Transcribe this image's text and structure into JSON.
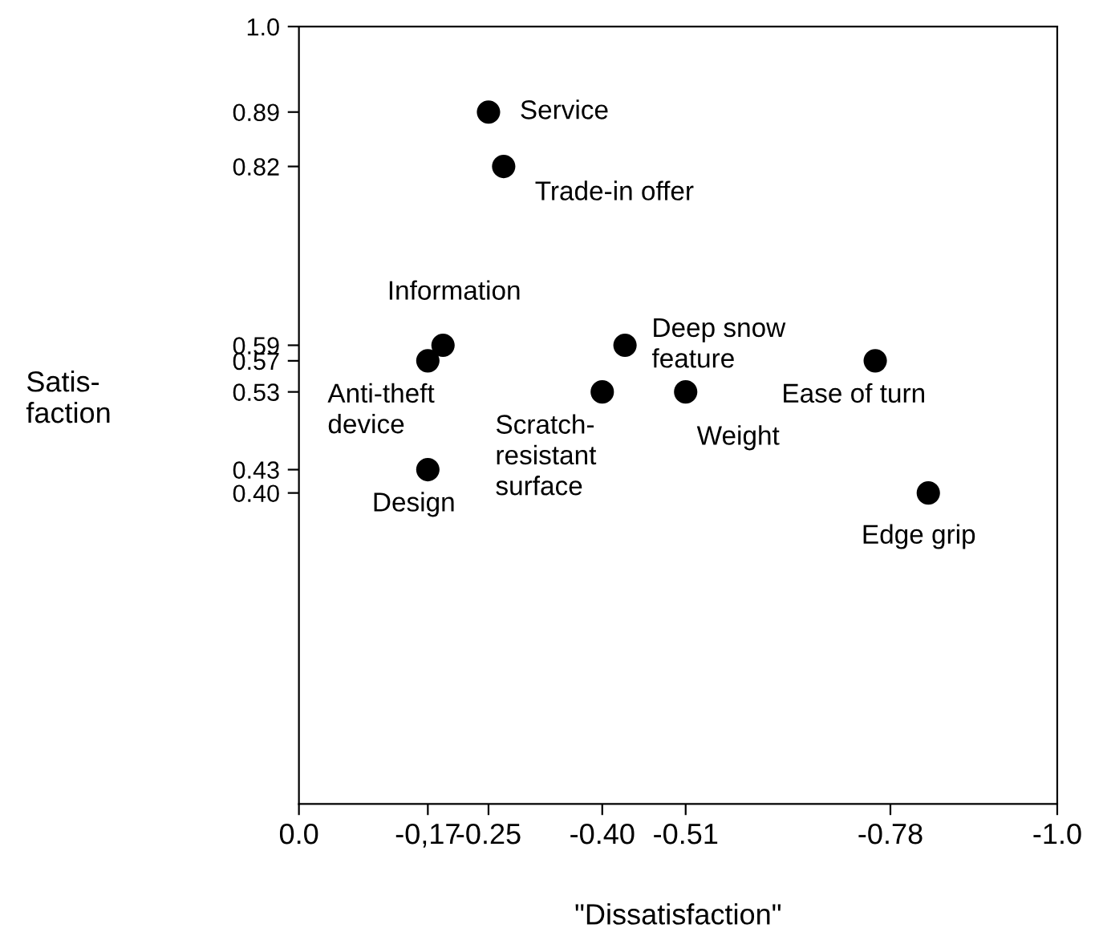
{
  "chart_data": {
    "type": "scatter",
    "xlabel": "\"Dissatisfaction\"",
    "ylabel": "Satis-\nfaction",
    "x": [
      -0.25,
      -0.27,
      -0.19,
      -0.17,
      -0.4,
      -0.43,
      -0.51,
      -0.76,
      -0.17,
      -0.83
    ],
    "values": [
      0.89,
      0.82,
      0.59,
      0.57,
      0.53,
      0.59,
      0.53,
      0.57,
      0.43,
      0.4
    ],
    "color": "#000000",
    "marker": "circle",
    "grid": false,
    "legend": false,
    "xlim": [
      0.0,
      -1.0
    ],
    "ylim": [
      0.0,
      1.0
    ],
    "xticks": [
      {
        "value": 0.0,
        "label": "0.0"
      },
      {
        "value": -0.17,
        "label": "-0,17"
      },
      {
        "value": -0.25,
        "label": "-0.25"
      },
      {
        "value": -0.4,
        "label": "-0.40"
      },
      {
        "value": -0.51,
        "label": "-0.51"
      },
      {
        "value": -0.78,
        "label": "-0.78"
      },
      {
        "value": -1.0,
        "label": "-1.0"
      }
    ],
    "yticks": [
      {
        "value": 0.4,
        "label": "0.40"
      },
      {
        "value": 0.43,
        "label": "0.43"
      },
      {
        "value": 0.53,
        "label": "0.53"
      },
      {
        "value": 0.57,
        "label": "0.57"
      },
      {
        "value": 0.59,
        "label": "0.59"
      },
      {
        "value": 0.82,
        "label": "0.82"
      },
      {
        "value": 0.89,
        "label": "0.89"
      },
      {
        "value": 1.0,
        "label": "1.0"
      }
    ],
    "annotations": [
      {
        "text": "Service",
        "x": -0.25,
        "y": 0.89
      },
      {
        "text": "Trade-in offer",
        "x": -0.27,
        "y": 0.82
      },
      {
        "text": "Information",
        "x": -0.19,
        "y": 0.59
      },
      {
        "text": "Anti-theft\ndevice",
        "x": -0.17,
        "y": 0.57
      },
      {
        "text": "Scratch-\nresistant\nsurface",
        "x": -0.4,
        "y": 0.53
      },
      {
        "text": "Deep snow\nfeature",
        "x": -0.43,
        "y": 0.59
      },
      {
        "text": "Weight",
        "x": -0.51,
        "y": 0.53
      },
      {
        "text": "Ease of turn",
        "x": -0.76,
        "y": 0.57
      },
      {
        "text": "Design",
        "x": -0.17,
        "y": 0.43
      },
      {
        "text": "Edge grip",
        "x": -0.83,
        "y": 0.4
      }
    ]
  }
}
